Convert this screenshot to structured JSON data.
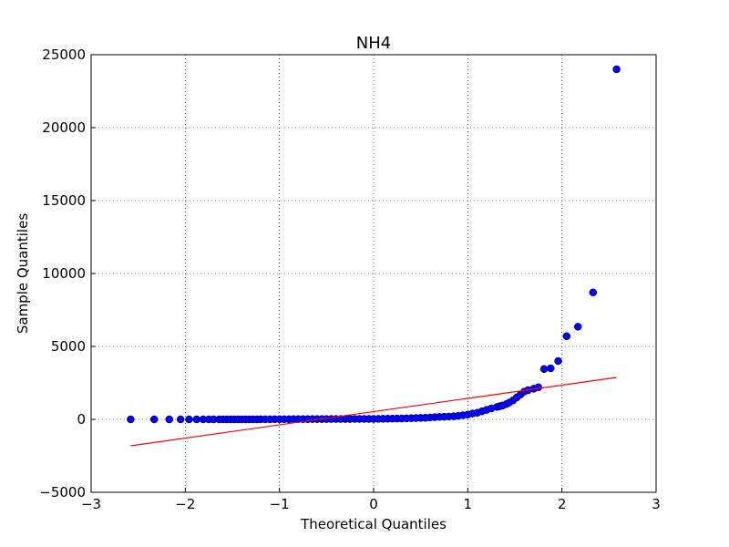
{
  "chart_data": {
    "type": "scatter",
    "title": "NH4",
    "x_label": "Theoretical Quantiles",
    "y_label": "Sample Quantiles",
    "xlim": [
      -3,
      3
    ],
    "ylim": [
      -5000,
      25000
    ],
    "xticks": [
      {
        "value": -3,
        "label": "−3"
      },
      {
        "value": -2,
        "label": "−2"
      },
      {
        "value": -1,
        "label": "−1"
      },
      0,
      1,
      2,
      3
    ],
    "yticks": [
      {
        "value": -5000,
        "label": "−5000"
      },
      0,
      5000,
      10000,
      15000,
      20000,
      25000
    ],
    "grid": true,
    "series": [
      {
        "style": "marker",
        "color": "#0000ff",
        "x": [
          -2.58,
          -2.33,
          -2.17,
          -2.05,
          -1.96,
          -1.88,
          -1.81,
          -1.75,
          -1.7,
          -1.64,
          -1.6,
          -1.56,
          -1.52,
          -1.48,
          -1.44,
          -1.4,
          -1.36,
          -1.32,
          -1.28,
          -1.24,
          -1.2,
          -1.15,
          -1.1,
          -1.05,
          -1.0,
          -0.95,
          -0.9,
          -0.85,
          -0.8,
          -0.75,
          -0.7,
          -0.65,
          -0.6,
          -0.55,
          -0.5,
          -0.45,
          -0.4,
          -0.35,
          -0.3,
          -0.25,
          -0.2,
          -0.15,
          -0.1,
          -0.05,
          0,
          0.05,
          0.1,
          0.15,
          0.2,
          0.25,
          0.3,
          0.35,
          0.4,
          0.45,
          0.5,
          0.55,
          0.6,
          0.65,
          0.7,
          0.75,
          0.8,
          0.85,
          0.9,
          0.95,
          1.0,
          1.05,
          1.1,
          1.15,
          1.2,
          1.25,
          1.31,
          1.34,
          1.37,
          1.41,
          1.44,
          1.48,
          1.52,
          1.56,
          1.6,
          1.64,
          1.7,
          1.75,
          1.81,
          1.88,
          1.96,
          2.05,
          2.17,
          2.33,
          2.58
        ],
        "values": [
          0,
          0,
          0,
          0,
          0,
          0,
          0,
          0,
          0,
          0,
          0,
          0,
          0,
          0,
          0,
          0,
          0,
          0,
          0,
          0,
          5,
          5,
          5,
          10,
          10,
          10,
          10,
          15,
          15,
          15,
          15,
          20,
          20,
          20,
          20,
          25,
          25,
          25,
          25,
          25,
          30,
          30,
          30,
          30,
          30,
          35,
          40,
          45,
          50,
          55,
          60,
          70,
          80,
          90,
          100,
          110,
          130,
          150,
          170,
          180,
          190,
          210,
          240,
          280,
          330,
          400,
          450,
          550,
          650,
          750,
          850,
          900,
          950,
          1050,
          1150,
          1300,
          1500,
          1700,
          1900,
          2000,
          2100,
          2200,
          3450,
          3500,
          4000,
          5700,
          6350,
          8700,
          24000
        ]
      },
      {
        "style": "line",
        "color": "#ff0000",
        "x": [
          -2.58,
          2.58
        ],
        "values": [
          -1812,
          2875
        ]
      }
    ]
  }
}
